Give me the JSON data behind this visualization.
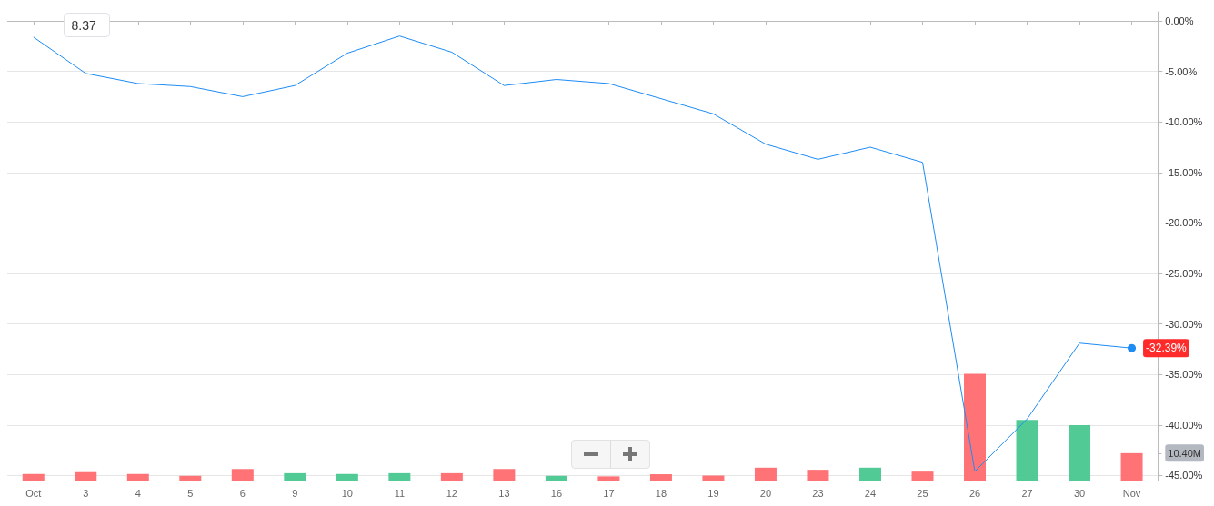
{
  "chart_data": {
    "type": "line",
    "categories": [
      "Oct",
      "3",
      "4",
      "5",
      "6",
      "9",
      "10",
      "11",
      "12",
      "13",
      "16",
      "17",
      "18",
      "19",
      "20",
      "23",
      "24",
      "25",
      "26",
      "27",
      "30",
      "Nov"
    ],
    "series": [
      {
        "type": "bar",
        "axis": "y2",
        "values": [
          2.5,
          3.2,
          2.5,
          1.8,
          4.4,
          2.8,
          2.5,
          2.8,
          2.8,
          4.4,
          1.8,
          1.6,
          2.4,
          1.9,
          4.9,
          4.1,
          4.9,
          3.4,
          40.5,
          23.0,
          21.0,
          10.4
        ],
        "colors": [
          "#ff6b6f",
          "#ff6b6f",
          "#ff6b6f",
          "#ff6b6f",
          "#ff6b6f",
          "#48c78f",
          "#48c78f",
          "#48c78f",
          "#ff6b6f",
          "#ff6b6f",
          "#48c78f",
          "#ff6b6f",
          "#ff6b6f",
          "#ff6b6f",
          "#ff6b6f",
          "#ff6b6f",
          "#48c78f",
          "#ff6b6f",
          "#ff6b6f",
          "#48c78f",
          "#48c78f",
          "#ff6b6f"
        ]
      },
      {
        "color": "#1e8cf5",
        "values": [
          -1.6,
          -5.2,
          -6.2,
          -6.5,
          -7.5,
          -6.4,
          -3.2,
          -1.5,
          -3.1,
          -6.4,
          -5.8,
          -6.2,
          -7.7,
          -9.2,
          -12.2,
          -13.7,
          -12.5,
          -14.0,
          -44.6,
          -39.4,
          -31.9,
          -32.39
        ],
        "value_labels": [
          null,
          null,
          null,
          null,
          null,
          null,
          null,
          null,
          null,
          null,
          null,
          null,
          null,
          null,
          null,
          null,
          null,
          null,
          null,
          null,
          null,
          "-32.39%"
        ]
      }
    ],
    "ylim": [
      -45.5,
      0.9
    ],
    "yticks": [
      {
        "value": 0,
        "label": "0.00%"
      },
      {
        "value": -5,
        "label": "-5.00%"
      },
      {
        "value": -10,
        "label": "-10.00%"
      },
      {
        "value": -15,
        "label": "-15.00%"
      },
      {
        "value": -20,
        "label": "-20.00%"
      },
      {
        "value": -25,
        "label": "-25.00%"
      },
      {
        "value": -30,
        "label": "-30.00%"
      },
      {
        "value": -35,
        "label": "-35.00%"
      },
      {
        "value": -40,
        "label": "-40.00%"
      },
      {
        "value": -45,
        "label": "-45.00%"
      }
    ],
    "y2lim": [
      0,
      178
    ],
    "y2ticks": [
      {
        "value": 0,
        "label": null
      },
      {
        "value": 10.4,
        "label": "10.40M"
      }
    ],
    "grid": "y",
    "annotations": [
      "8.37"
    ]
  }
}
